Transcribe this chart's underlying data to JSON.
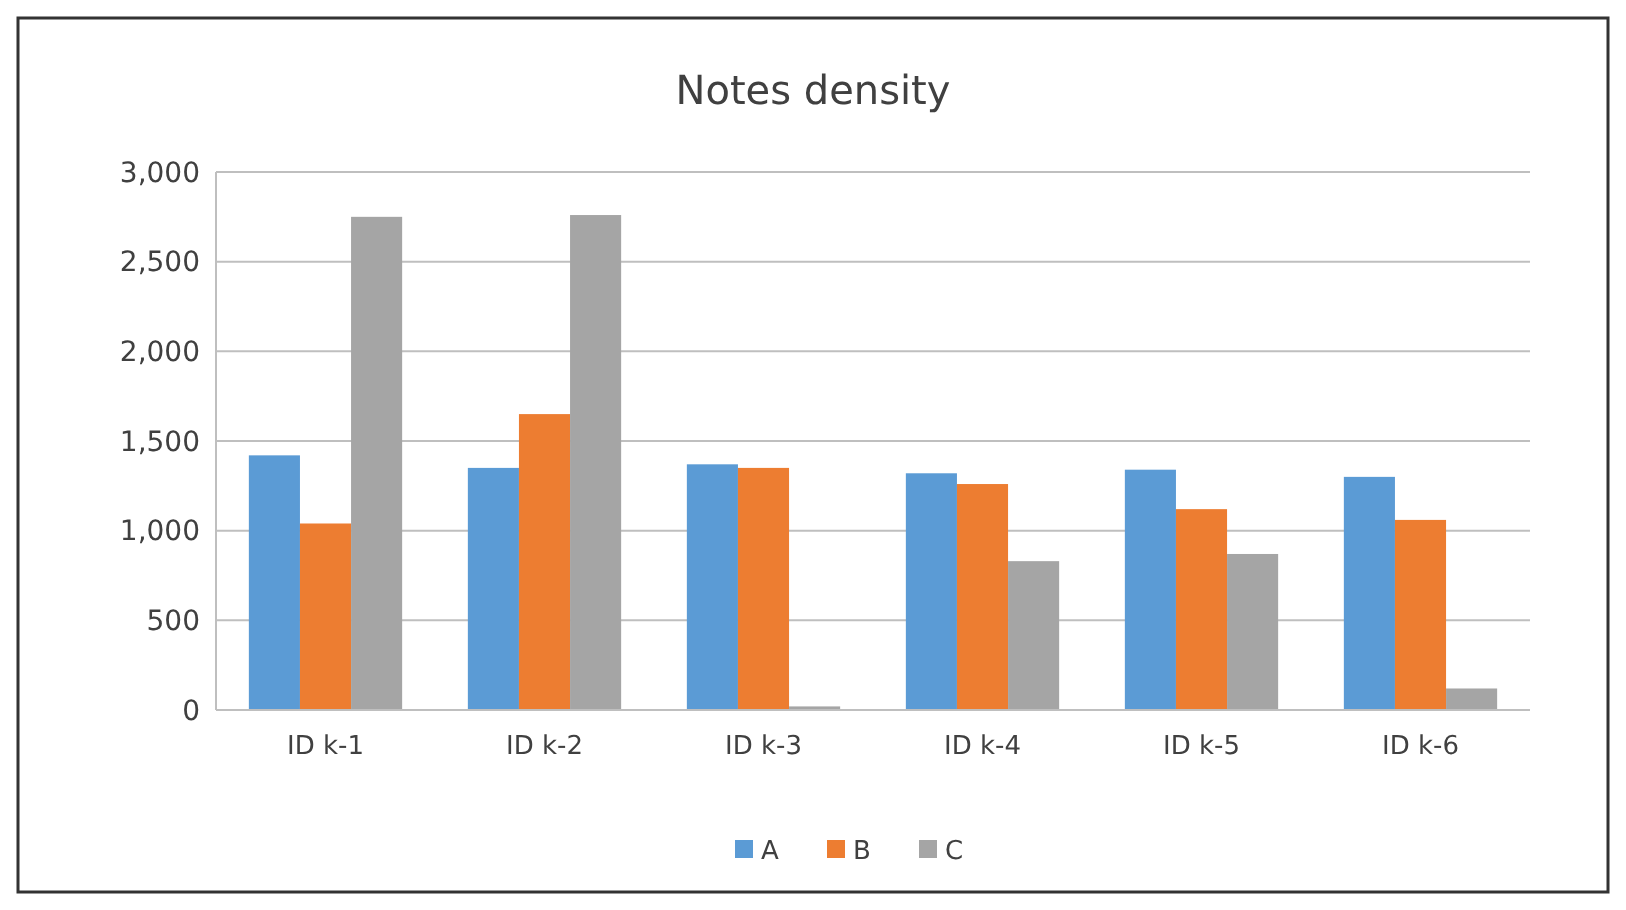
{
  "chart_data": {
    "type": "bar",
    "title": "Notes density",
    "categories": [
      "ID k-1",
      "ID k-2",
      "ID k-3",
      "ID k-4",
      "ID k-5",
      "ID k-6"
    ],
    "series": [
      {
        "name": "A",
        "color": "#5b9bd5",
        "values": [
          1420,
          1350,
          1370,
          1320,
          1340,
          1300
        ]
      },
      {
        "name": "B",
        "color": "#ed7d31",
        "values": [
          1040,
          1650,
          1350,
          1260,
          1120,
          1060
        ]
      },
      {
        "name": "C",
        "color": "#a5a5a5",
        "values": [
          2750,
          2760,
          20,
          830,
          870,
          120
        ]
      }
    ],
    "ylim": [
      0,
      3000
    ],
    "yticks": [
      0,
      {
        "value": 500,
        "label": "500"
      },
      {
        "value": 1000,
        "label": "1,000"
      },
      {
        "value": 1500,
        "label": "1,500"
      },
      {
        "value": 2000,
        "label": "2,000"
      },
      {
        "value": 2500,
        "label": "2,500"
      },
      {
        "value": 3000,
        "label": "3,000"
      }
    ],
    "grid": "y",
    "legend": "bottom"
  }
}
